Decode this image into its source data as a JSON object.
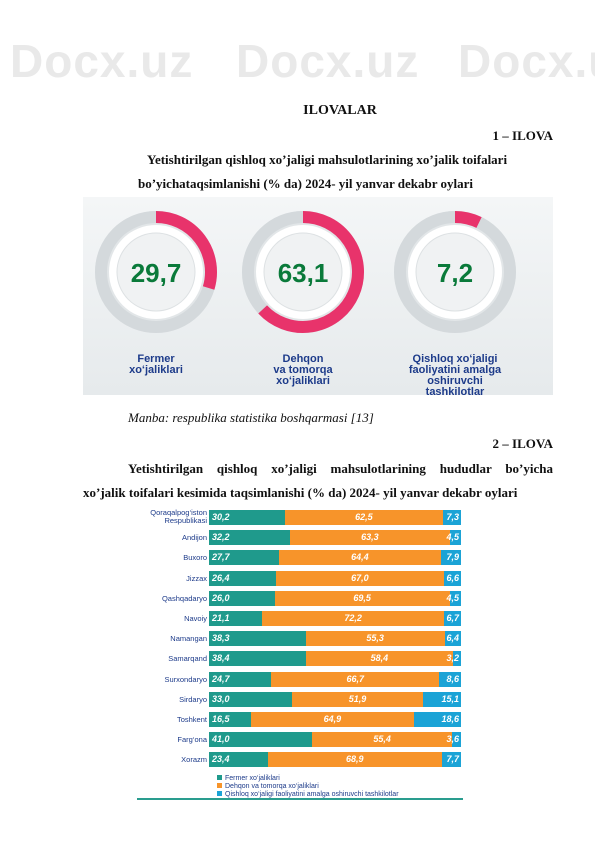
{
  "watermark": "Docx.uz",
  "title": "ILOVALAR",
  "ilova1": "1 – ILOVA",
  "heading1_line1": "Yetishtirilgan qishloq xo’jaligi mahsulotlarining xo’jalik toifalari",
  "heading1_line2": "bo’yichataqsimlanishi (% da) 2024- yil yanvar dekabr oylari",
  "source": "Manba: respublika statistika boshqarmasi [13]",
  "ilova2": "2 – ILOVA",
  "heading2_line1": "Yetishtirilgan qishloq xo’jaligi mahsulotlarining hududlar bo’yicha",
  "heading2_line2": "xo’jalik toifalari kesimida taqsimlanishi (% da) 2024- yil yanvar dekabr oylari",
  "donuts": [
    {
      "value": "29,7",
      "percent": 29.7,
      "label": [
        "Fermer",
        "xo‘jaliklari"
      ]
    },
    {
      "value": "63,1",
      "percent": 63.1,
      "label": [
        "Dehqon",
        "va tomorqa",
        "xo‘jaliklari"
      ]
    },
    {
      "value": "7,2",
      "percent": 7.2,
      "label": [
        "Qishloq xo‘jaligi",
        "faoliyatini amalga",
        "oshiruvchi",
        "tashkilotlar"
      ]
    }
  ],
  "chart_data": {
    "type": "bar",
    "stacked": true,
    "orientation": "horizontal",
    "categories": [
      "Qoraqalpog‘iston Respublikasi",
      "Andijon",
      "Buxoro",
      "Jizzax",
      "Qashqadaryo",
      "Navoiy",
      "Namangan",
      "Samarqand",
      "Surxondaryo",
      "Sirdaryo",
      "Toshkent",
      "Farg‘ona",
      "Xorazm"
    ],
    "series": [
      {
        "name": "Fermer xo‘jaliklari",
        "color": "#1f9a8c",
        "values": [
          30.2,
          32.2,
          27.7,
          26.4,
          26.0,
          21.1,
          38.3,
          38.4,
          24.7,
          33.0,
          16.5,
          41.0,
          23.4
        ]
      },
      {
        "name": "Dehqon va tomorqa xo‘jaliklari",
        "color": "#f7942a",
        "values": [
          62.5,
          63.3,
          64.4,
          67.0,
          69.5,
          72.2,
          55.3,
          58.4,
          66.7,
          51.9,
          64.9,
          55.4,
          68.9
        ]
      },
      {
        "name": "Qishloq xo‘jaligi faoliyatini amalga oshiruvchi tashkilotlar",
        "color": "#1ba3d6",
        "values": [
          7.3,
          4.5,
          7.9,
          6.6,
          4.5,
          6.7,
          6.4,
          3.2,
          8.6,
          15.1,
          18.6,
          3.6,
          7.7
        ]
      }
    ],
    "labels": [
      [
        "30,2",
        "62,5",
        "7,3"
      ],
      [
        "32,2",
        "63,3",
        "4,5"
      ],
      [
        "27,7",
        "64,4",
        "7,9"
      ],
      [
        "26,4",
        "67,0",
        "6,6"
      ],
      [
        "26,0",
        "69,5",
        "4,5"
      ],
      [
        "21,1",
        "72,2",
        "6,7"
      ],
      [
        "38,3",
        "55,3",
        "6,4"
      ],
      [
        "38,4",
        "58,4",
        "3,2"
      ],
      [
        "24,7",
        "66,7",
        "8,6"
      ],
      [
        "33,0",
        "51,9",
        "15,1"
      ],
      [
        "16,5",
        "64,9",
        "18,6"
      ],
      [
        "41,0",
        "55,4",
        "3,6"
      ],
      [
        "23,4",
        "68,9",
        "7,7"
      ]
    ]
  }
}
